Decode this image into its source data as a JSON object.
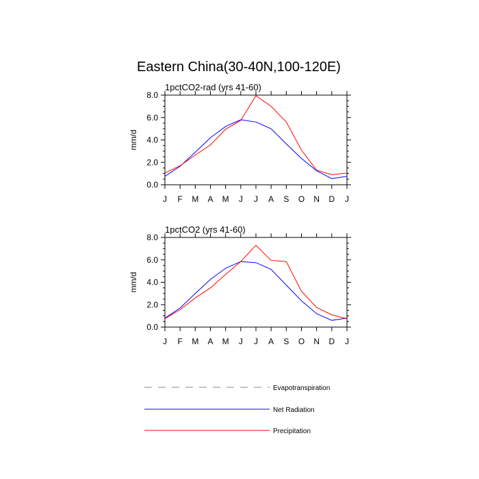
{
  "figure": {
    "title": "Eastern China(30-40N,100-120E)"
  },
  "chart_data": [
    {
      "type": "line",
      "title": "1pctCO2-rad (yrs 41-60)",
      "xlabel": "",
      "ylabel": "mm/d",
      "ylim": [
        0,
        8
      ],
      "yticks": [
        "0.0",
        "2.0",
        "4.0",
        "6.0",
        "8.0"
      ],
      "categories": [
        "J",
        "F",
        "M",
        "A",
        "M",
        "J",
        "J",
        "A",
        "S",
        "O",
        "N",
        "D",
        "J"
      ],
      "series": [
        {
          "name": "Net Radiation",
          "color": "#0000ff",
          "values": [
            0.75,
            1.65,
            2.9,
            4.2,
            5.2,
            5.8,
            5.6,
            5.0,
            3.65,
            2.35,
            1.25,
            0.55,
            0.75
          ]
        },
        {
          "name": "Precipitation",
          "color": "#ff0000",
          "values": [
            1.05,
            1.7,
            2.65,
            3.55,
            4.95,
            5.75,
            7.95,
            7.0,
            5.6,
            3.1,
            1.3,
            0.9,
            1.05
          ]
        }
      ]
    },
    {
      "type": "line",
      "title": "1pctCO2 (yrs 41-60)",
      "xlabel": "",
      "ylabel": "mm/d",
      "ylim": [
        0,
        8
      ],
      "yticks": [
        "0.0",
        "2.0",
        "4.0",
        "6.0",
        "8.0"
      ],
      "categories": [
        "J",
        "F",
        "M",
        "A",
        "M",
        "J",
        "J",
        "A",
        "S",
        "O",
        "N",
        "D",
        "J"
      ],
      "series": [
        {
          "name": "Net Radiation",
          "color": "#0000ff",
          "values": [
            0.8,
            1.7,
            3.0,
            4.25,
            5.25,
            5.85,
            5.75,
            5.15,
            3.75,
            2.35,
            1.2,
            0.6,
            0.8
          ]
        },
        {
          "name": "Precipitation",
          "color": "#ff0000",
          "values": [
            0.75,
            1.55,
            2.6,
            3.5,
            4.7,
            5.85,
            7.3,
            5.95,
            5.85,
            3.2,
            1.75,
            1.1,
            0.75
          ]
        }
      ]
    }
  ],
  "legend": {
    "items": [
      {
        "label": "Evapotranspiration",
        "color": "#888888",
        "dashed": true
      },
      {
        "label": "Net Radiation",
        "color": "#0000ff",
        "dashed": false
      },
      {
        "label": "Precipitation",
        "color": "#ff0000",
        "dashed": false
      }
    ]
  }
}
